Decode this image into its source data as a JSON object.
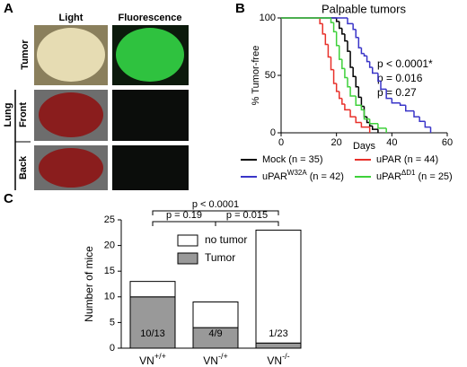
{
  "panel_a": {
    "label": "A",
    "columns": [
      "Light",
      "Fluorescence"
    ],
    "rows": [
      "Tumor",
      "Front",
      "Back"
    ],
    "group": "Lung"
  },
  "chart_data": [
    {
      "type": "step",
      "panel": "B",
      "title": "Palpable tumors",
      "x_label": "Days",
      "y_label": "% Tumor-free",
      "xlim": [
        0,
        60
      ],
      "xticks": [
        0,
        20,
        40,
        60
      ],
      "ylim": [
        0,
        100
      ],
      "yticks": [
        0,
        50,
        100
      ],
      "annotations": [
        {
          "text": "p < 0.0001*",
          "color": "#e8302a"
        },
        {
          "text": "p = 0.016",
          "color": "#3a35c8"
        },
        {
          "text": "p = 0.27",
          "color": "#3ed13a"
        }
      ],
      "series": [
        {
          "name": "Mock",
          "n_label": "(n = 35)",
          "color": "#000000",
          "x": [
            0,
            20,
            21,
            22,
            23,
            24,
            25,
            26,
            27,
            28,
            29,
            30,
            31,
            32,
            33,
            35
          ],
          "values": [
            100,
            97,
            91,
            86,
            80,
            71,
            57,
            49,
            40,
            31,
            23,
            14,
            9,
            6,
            3,
            0
          ]
        },
        {
          "name": "uPAR",
          "n_label": "(n = 44)",
          "color": "#e8302a",
          "x": [
            0,
            14,
            15,
            16,
            17,
            18,
            19,
            20,
            21,
            22,
            23,
            25,
            27,
            29,
            32
          ],
          "values": [
            100,
            95,
            86,
            77,
            66,
            55,
            43,
            36,
            30,
            25,
            20,
            14,
            9,
            5,
            0
          ]
        },
        {
          "name": "uPAR",
          "superscript": "W32A",
          "n_label": "(n = 42)",
          "color": "#3a35c8",
          "x": [
            0,
            24,
            26,
            27,
            28,
            29,
            30,
            31,
            32,
            33,
            35,
            36,
            38,
            40,
            43,
            45,
            48,
            50,
            52,
            54
          ],
          "values": [
            100,
            95,
            90,
            83,
            74,
            69,
            67,
            62,
            57,
            52,
            45,
            38,
            30,
            26,
            24,
            19,
            14,
            10,
            5,
            0
          ]
        },
        {
          "name": "uPAR",
          "superscript": "ΔD1",
          "n_label": "(n = 25)",
          "color": "#3ed13a",
          "x": [
            0,
            18,
            19,
            20,
            21,
            22,
            23,
            24,
            25,
            27,
            29,
            30,
            32,
            35,
            38
          ],
          "values": [
            100,
            96,
            88,
            76,
            64,
            56,
            48,
            40,
            32,
            24,
            20,
            12,
            8,
            4,
            0
          ]
        }
      ]
    },
    {
      "type": "stacked_bar",
      "panel": "C",
      "y_label": "Number of mice",
      "categories": [
        "VN",
        "VN",
        "VN"
      ],
      "category_superscripts": [
        "+/+",
        "-/+",
        "-/-"
      ],
      "ylim": [
        0,
        25
      ],
      "yticks": [
        0,
        5,
        10,
        15,
        20,
        25
      ],
      "series": [
        {
          "name": "Tumor",
          "color": "#999999",
          "values": [
            10,
            4,
            1
          ],
          "value_labels": [
            "10/13",
            "4/9",
            "1/23"
          ]
        },
        {
          "name": "no tumor",
          "color": "#ffffff",
          "values": [
            3,
            5,
            22
          ]
        }
      ],
      "comparisons": [
        {
          "text": "p < 0.0001",
          "from": 0,
          "to": 2
        },
        {
          "text": "p = 0.19",
          "from": 0,
          "to": 1
        },
        {
          "text": "p = 0.015",
          "from": 1,
          "to": 2
        }
      ]
    }
  ]
}
